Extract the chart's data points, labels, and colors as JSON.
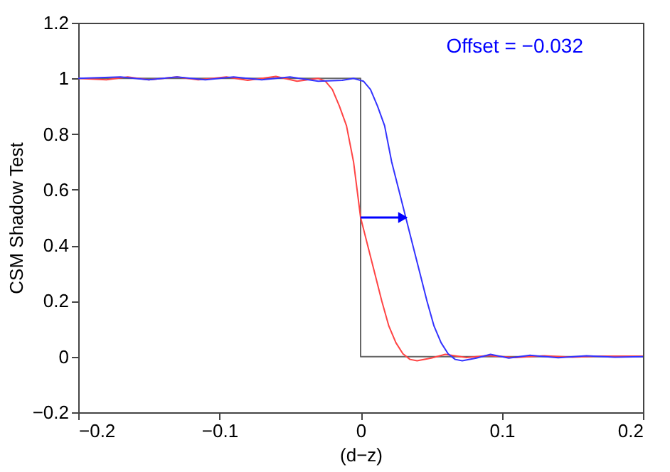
{
  "chart_data": {
    "type": "line",
    "xlabel": "(d−z)",
    "ylabel": "CSM Shadow Test",
    "annotations": [
      "Offset = −0.032"
    ],
    "xlim": [
      -0.2,
      0.2
    ],
    "ylim": [
      -0.2,
      1.2
    ],
    "xticks": [
      {
        "value": -0.2,
        "label": "−0.2"
      },
      {
        "value": -0.1,
        "label": "−0.1"
      },
      0,
      0.1,
      0.2
    ],
    "yticks": [
      {
        "value": -0.2,
        "label": "−0.2"
      },
      0,
      0.2,
      0.4,
      0.6,
      0.8,
      1,
      1.2
    ],
    "series": [
      {
        "color": "#666666",
        "x": [
          -0.2,
          0,
          0,
          0.2
        ],
        "values": [
          1,
          1,
          0,
          0
        ]
      },
      {
        "color": "#ff4444",
        "x": [
          -0.2,
          -0.18,
          -0.165,
          -0.15,
          -0.13,
          -0.115,
          -0.095,
          -0.08,
          -0.06,
          -0.045,
          -0.03,
          -0.025,
          -0.02,
          -0.015,
          -0.01,
          -0.005,
          0,
          0.005,
          0.01,
          0.015,
          0.02,
          0.025,
          0.03,
          0.035,
          0.04,
          0.05,
          0.06,
          0.075,
          0.09,
          0.11,
          0.13,
          0.15,
          0.17,
          0.2
        ],
        "values": [
          1.0,
          0.995,
          1.005,
          0.995,
          1.005,
          0.995,
          1.005,
          0.993,
          1.007,
          0.99,
          1.0,
          0.99,
          0.96,
          0.9,
          0.83,
          0.7,
          0.5,
          0.4,
          0.3,
          0.2,
          0.11,
          0.05,
          0.01,
          -0.01,
          -0.015,
          -0.005,
          0.008,
          -0.003,
          0.004,
          -0.003,
          0.003,
          -0.002,
          0.002,
          0.002
        ]
      },
      {
        "color": "#3333ff",
        "x": [
          -0.2,
          -0.17,
          -0.15,
          -0.13,
          -0.11,
          -0.09,
          -0.07,
          -0.05,
          -0.03,
          -0.013,
          -0.005,
          0.002,
          0.007,
          0.012,
          0.017,
          0.022,
          0.027,
          0.032,
          0.037,
          0.042,
          0.047,
          0.052,
          0.057,
          0.062,
          0.067,
          0.072,
          0.082,
          0.092,
          0.105,
          0.12,
          0.14,
          0.16,
          0.18,
          0.2
        ],
        "values": [
          1.0,
          1.005,
          0.995,
          1.005,
          0.995,
          1.005,
          0.995,
          1.005,
          0.99,
          0.993,
          1.0,
          0.99,
          0.96,
          0.9,
          0.83,
          0.7,
          0.6,
          0.5,
          0.4,
          0.3,
          0.2,
          0.11,
          0.05,
          0.01,
          -0.01,
          -0.015,
          -0.005,
          0.008,
          -0.005,
          0.005,
          -0.004,
          0.003,
          -0.002,
          0.0
        ]
      },
      {
        "color": "#0000ff",
        "marker": "triangle",
        "x": [
          0,
          0.03
        ],
        "values": [
          0.5,
          0.5
        ]
      }
    ]
  }
}
